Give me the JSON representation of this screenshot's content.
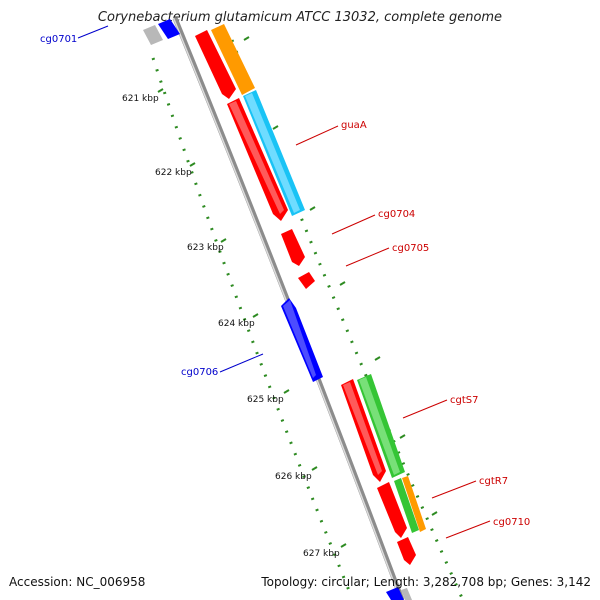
{
  "title": "Corynebacterium glutamicum ATCC 13032, complete genome",
  "footer": {
    "accession": "Accession: NC_006958",
    "summary": "Topology: circular; Length: 3,282,708 bp; Genes: 3,142"
  },
  "colors": {
    "backbone": "#8c8c8c",
    "tick": "#2e8b22",
    "label_forward": "#cc0000",
    "label_reverse": "#0000cc",
    "red": "#ff0000",
    "orange": "#ff9a00",
    "cyan": "#19c3f5",
    "green": "#35c535",
    "blue": "#0000ff",
    "grey": "#b8b8b8"
  },
  "kbp_labels": [
    "621 kbp",
    "622 kbp",
    "623 kbp",
    "624 kbp",
    "625 kbp",
    "626 kbp",
    "627 kbp"
  ],
  "gene_labels": [
    {
      "text": "cg0701",
      "strand": "reverse"
    },
    {
      "text": "guaA",
      "strand": "forward"
    },
    {
      "text": "cg0704",
      "strand": "forward"
    },
    {
      "text": "cg0705",
      "strand": "forward"
    },
    {
      "text": "cg0706",
      "strand": "reverse"
    },
    {
      "text": "cgtS7",
      "strand": "forward"
    },
    {
      "text": "cgtR7",
      "strand": "forward"
    },
    {
      "text": "cg0710",
      "strand": "forward"
    }
  ]
}
